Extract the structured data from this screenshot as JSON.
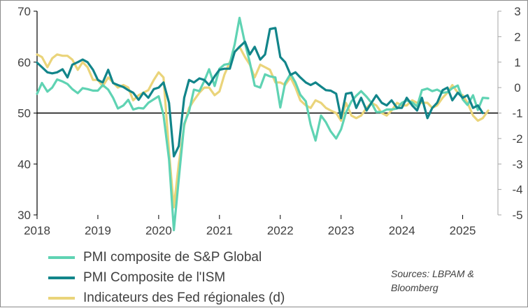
{
  "colors": {
    "sp_global": "#5fd3b3",
    "ism": "#12858a",
    "fed": "#ead47a",
    "axis": "#000000",
    "text": "#404040"
  },
  "legend": {
    "sp_global": "PMI composite de S&P Global",
    "ism": "PMI Composite de l'ISM",
    "fed": "Indicateurs des Fed régionales (d)"
  },
  "sources": {
    "line1": "Sources: LBPAM &",
    "line2": "Bloomberg"
  },
  "chart_data": {
    "type": "line",
    "x_tick_labels": [
      "2018",
      "2019",
      "2020",
      "2021",
      "2022",
      "2023",
      "2024",
      "2025"
    ],
    "xlim": [
      2018.0,
      2025.58
    ],
    "y_left": {
      "lim": [
        30,
        70
      ],
      "ticks": [
        30,
        40,
        50,
        60,
        70
      ],
      "reference_line": 50
    },
    "y_right": {
      "lim": [
        -5,
        3
      ],
      "ticks": [
        3,
        2,
        1,
        0,
        -1,
        -2,
        -3,
        -4,
        -5
      ]
    },
    "series": [
      {
        "name": "PMI composite de S&P Global",
        "axis": "left",
        "color_key": "sp_global",
        "points": [
          [
            2018.0,
            53.8
          ],
          [
            2018.08,
            55.9
          ],
          [
            2018.17,
            54.2
          ],
          [
            2018.25,
            55.0
          ],
          [
            2018.33,
            56.6
          ],
          [
            2018.42,
            56.2
          ],
          [
            2018.5,
            55.7
          ],
          [
            2018.58,
            54.7
          ],
          [
            2018.67,
            53.9
          ],
          [
            2018.75,
            54.9
          ],
          [
            2018.83,
            54.7
          ],
          [
            2018.92,
            54.4
          ],
          [
            2019.0,
            54.4
          ],
          [
            2019.08,
            55.5
          ],
          [
            2019.17,
            54.6
          ],
          [
            2019.25,
            53.0
          ],
          [
            2019.33,
            50.9
          ],
          [
            2019.42,
            51.5
          ],
          [
            2019.5,
            52.6
          ],
          [
            2019.58,
            50.7
          ],
          [
            2019.67,
            51.0
          ],
          [
            2019.75,
            50.9
          ],
          [
            2019.83,
            52.0
          ],
          [
            2019.92,
            52.7
          ],
          [
            2020.0,
            53.3
          ],
          [
            2020.08,
            49.6
          ],
          [
            2020.17,
            40.9
          ],
          [
            2020.25,
            27.0
          ],
          [
            2020.33,
            37.0
          ],
          [
            2020.42,
            47.9
          ],
          [
            2020.5,
            50.3
          ],
          [
            2020.58,
            54.6
          ],
          [
            2020.67,
            54.3
          ],
          [
            2020.75,
            56.3
          ],
          [
            2020.83,
            58.6
          ],
          [
            2020.92,
            55.3
          ],
          [
            2021.0,
            58.7
          ],
          [
            2021.08,
            59.5
          ],
          [
            2021.17,
            59.7
          ],
          [
            2021.25,
            63.5
          ],
          [
            2021.33,
            68.7
          ],
          [
            2021.42,
            63.7
          ],
          [
            2021.5,
            59.9
          ],
          [
            2021.58,
            55.4
          ],
          [
            2021.67,
            55.0
          ],
          [
            2021.75,
            57.6
          ],
          [
            2021.83,
            57.2
          ],
          [
            2021.92,
            57.0
          ],
          [
            2022.0,
            51.1
          ],
          [
            2022.08,
            55.9
          ],
          [
            2022.17,
            57.7
          ],
          [
            2022.25,
            56.0
          ],
          [
            2022.33,
            53.6
          ],
          [
            2022.42,
            52.3
          ],
          [
            2022.5,
            47.7
          ],
          [
            2022.58,
            44.6
          ],
          [
            2022.67,
            49.5
          ],
          [
            2022.75,
            48.2
          ],
          [
            2022.83,
            46.4
          ],
          [
            2022.92,
            45.0
          ],
          [
            2023.0,
            46.8
          ],
          [
            2023.08,
            50.1
          ],
          [
            2023.17,
            52.3
          ],
          [
            2023.25,
            53.4
          ],
          [
            2023.33,
            54.3
          ],
          [
            2023.42,
            53.2
          ],
          [
            2023.5,
            52.0
          ],
          [
            2023.58,
            50.2
          ],
          [
            2023.67,
            50.2
          ],
          [
            2023.75,
            50.7
          ],
          [
            2023.83,
            50.7
          ],
          [
            2023.92,
            50.9
          ],
          [
            2024.0,
            52.0
          ],
          [
            2024.08,
            52.5
          ],
          [
            2024.17,
            52.1
          ],
          [
            2024.25,
            51.3
          ],
          [
            2024.33,
            54.5
          ],
          [
            2024.42,
            54.8
          ],
          [
            2024.5,
            54.3
          ],
          [
            2024.58,
            54.6
          ],
          [
            2024.67,
            54.0
          ],
          [
            2024.75,
            54.1
          ],
          [
            2024.83,
            54.9
          ],
          [
            2024.92,
            55.4
          ],
          [
            2025.0,
            52.7
          ],
          [
            2025.08,
            51.6
          ],
          [
            2025.17,
            53.5
          ],
          [
            2025.25,
            50.6
          ],
          [
            2025.33,
            53.0
          ],
          [
            2025.42,
            52.9
          ]
        ]
      },
      {
        "name": "PMI Composite de l'ISM",
        "axis": "left",
        "color_key": "ism",
        "points": [
          [
            2018.0,
            59.9
          ],
          [
            2018.08,
            59.0
          ],
          [
            2018.17,
            58.0
          ],
          [
            2018.25,
            57.8
          ],
          [
            2018.33,
            58.0
          ],
          [
            2018.42,
            58.6
          ],
          [
            2018.5,
            57.0
          ],
          [
            2018.58,
            59.5
          ],
          [
            2018.67,
            60.0
          ],
          [
            2018.75,
            60.5
          ],
          [
            2018.83,
            60.0
          ],
          [
            2018.92,
            58.5
          ],
          [
            2019.0,
            56.5
          ],
          [
            2019.08,
            56.0
          ],
          [
            2019.17,
            58.5
          ],
          [
            2019.25,
            55.9
          ],
          [
            2019.33,
            55.5
          ],
          [
            2019.42,
            55.1
          ],
          [
            2019.5,
            54.5
          ],
          [
            2019.58,
            54.0
          ],
          [
            2019.67,
            52.6
          ],
          [
            2019.75,
            54.0
          ],
          [
            2019.83,
            53.0
          ],
          [
            2019.92,
            54.7
          ],
          [
            2020.0,
            55.0
          ],
          [
            2020.08,
            56.0
          ],
          [
            2020.17,
            52.0
          ],
          [
            2020.25,
            41.5
          ],
          [
            2020.33,
            43.5
          ],
          [
            2020.42,
            53.0
          ],
          [
            2020.5,
            56.5
          ],
          [
            2020.58,
            56.0
          ],
          [
            2020.67,
            56.8
          ],
          [
            2020.75,
            56.5
          ],
          [
            2020.83,
            55.5
          ],
          [
            2020.92,
            57.2
          ],
          [
            2021.0,
            58.5
          ],
          [
            2021.08,
            58.7
          ],
          [
            2021.17,
            58.7
          ],
          [
            2021.25,
            62.0
          ],
          [
            2021.33,
            63.0
          ],
          [
            2021.42,
            64.0
          ],
          [
            2021.5,
            61.5
          ],
          [
            2021.58,
            63.0
          ],
          [
            2021.67,
            60.5
          ],
          [
            2021.75,
            61.5
          ],
          [
            2021.83,
            66.5
          ],
          [
            2021.92,
            66.7
          ],
          [
            2022.0,
            61.0
          ],
          [
            2022.08,
            60.0
          ],
          [
            2022.17,
            57.5
          ],
          [
            2022.25,
            58.0
          ],
          [
            2022.33,
            57.0
          ],
          [
            2022.42,
            56.0
          ],
          [
            2022.5,
            55.5
          ],
          [
            2022.58,
            56.0
          ],
          [
            2022.67,
            55.2
          ],
          [
            2022.75,
            54.5
          ],
          [
            2022.83,
            54.4
          ],
          [
            2022.92,
            53.8
          ],
          [
            2023.0,
            49.0
          ],
          [
            2023.08,
            53.8
          ],
          [
            2023.17,
            54.0
          ],
          [
            2023.25,
            51.0
          ],
          [
            2023.33,
            53.0
          ],
          [
            2023.42,
            50.5
          ],
          [
            2023.5,
            52.0
          ],
          [
            2023.58,
            53.5
          ],
          [
            2023.67,
            52.0
          ],
          [
            2023.75,
            51.5
          ],
          [
            2023.83,
            52.5
          ],
          [
            2023.92,
            51.0
          ],
          [
            2024.0,
            51.0
          ],
          [
            2024.08,
            53.0
          ],
          [
            2024.17,
            51.5
          ],
          [
            2024.25,
            50.5
          ],
          [
            2024.33,
            53.0
          ],
          [
            2024.42,
            49.0
          ],
          [
            2024.5,
            51.0
          ],
          [
            2024.58,
            52.0
          ],
          [
            2024.67,
            54.5
          ],
          [
            2024.75,
            55.0
          ],
          [
            2024.83,
            52.5
          ],
          [
            2024.92,
            54.0
          ],
          [
            2025.0,
            53.0
          ],
          [
            2025.08,
            53.5
          ],
          [
            2025.17,
            51.0
          ],
          [
            2025.25,
            51.5
          ],
          [
            2025.33,
            50.0
          ]
        ]
      },
      {
        "name": "Indicateurs des Fed régionales (d)",
        "axis": "right",
        "color_key": "fed",
        "points": [
          [
            2018.0,
            1.3
          ],
          [
            2018.08,
            1.2
          ],
          [
            2018.17,
            0.8
          ],
          [
            2018.25,
            1.15
          ],
          [
            2018.33,
            1.3
          ],
          [
            2018.42,
            1.25
          ],
          [
            2018.5,
            1.25
          ],
          [
            2018.58,
            1.1
          ],
          [
            2018.67,
            0.7
          ],
          [
            2018.75,
            1.0
          ],
          [
            2018.83,
            0.8
          ],
          [
            2018.92,
            0.3
          ],
          [
            2019.0,
            0.3
          ],
          [
            2019.08,
            0.05
          ],
          [
            2019.17,
            0.4
          ],
          [
            2019.25,
            0.2
          ],
          [
            2019.33,
            0.0
          ],
          [
            2019.42,
            0.1
          ],
          [
            2019.5,
            0.0
          ],
          [
            2019.58,
            -0.5
          ],
          [
            2019.67,
            -0.3
          ],
          [
            2019.75,
            -0.2
          ],
          [
            2019.83,
            -0.1
          ],
          [
            2019.92,
            0.3
          ],
          [
            2020.0,
            0.6
          ],
          [
            2020.08,
            0.4
          ],
          [
            2020.17,
            -2.5
          ],
          [
            2020.25,
            -4.7
          ],
          [
            2020.33,
            -3.0
          ],
          [
            2020.42,
            -1.5
          ],
          [
            2020.5,
            -0.8
          ],
          [
            2020.58,
            -0.5
          ],
          [
            2020.67,
            -0.2
          ],
          [
            2020.75,
            0.0
          ],
          [
            2020.83,
            0.0
          ],
          [
            2020.92,
            -0.3
          ],
          [
            2021.0,
            -0.15
          ],
          [
            2021.08,
            0.5
          ],
          [
            2021.17,
            1.0
          ],
          [
            2021.25,
            1.4
          ],
          [
            2021.33,
            1.6
          ],
          [
            2021.42,
            1.2
          ],
          [
            2021.5,
            0.9
          ],
          [
            2021.58,
            0.4
          ],
          [
            2021.67,
            0.9
          ],
          [
            2021.75,
            0.8
          ],
          [
            2021.83,
            0.7
          ],
          [
            2021.92,
            0.2
          ],
          [
            2022.0,
            0.2
          ],
          [
            2022.08,
            0.1
          ],
          [
            2022.17,
            0.4
          ],
          [
            2022.25,
            0.0
          ],
          [
            2022.33,
            -0.5
          ],
          [
            2022.42,
            -0.7
          ],
          [
            2022.5,
            -0.8
          ],
          [
            2022.58,
            -0.5
          ],
          [
            2022.67,
            -0.6
          ],
          [
            2022.75,
            -0.8
          ],
          [
            2022.83,
            -0.9
          ],
          [
            2022.92,
            -1.0
          ],
          [
            2023.0,
            -1.3
          ],
          [
            2023.08,
            -0.6
          ],
          [
            2023.17,
            -1.1
          ],
          [
            2023.25,
            -1.2
          ],
          [
            2023.33,
            -1.1
          ],
          [
            2023.42,
            -0.8
          ],
          [
            2023.5,
            -0.6
          ],
          [
            2023.58,
            -0.7
          ],
          [
            2023.67,
            -1.0
          ],
          [
            2023.75,
            -1.1
          ],
          [
            2023.83,
            -0.9
          ],
          [
            2023.92,
            -0.6
          ],
          [
            2024.0,
            -0.7
          ],
          [
            2024.08,
            -0.7
          ],
          [
            2024.17,
            -0.5
          ],
          [
            2024.25,
            -0.6
          ],
          [
            2024.33,
            -0.6
          ],
          [
            2024.42,
            -0.6
          ],
          [
            2024.5,
            -0.8
          ],
          [
            2024.58,
            -0.7
          ],
          [
            2024.67,
            -0.4
          ],
          [
            2024.75,
            -0.2
          ],
          [
            2024.83,
            0.1
          ],
          [
            2024.92,
            -0.2
          ],
          [
            2025.0,
            -0.3
          ],
          [
            2025.08,
            -0.6
          ],
          [
            2025.17,
            -1.1
          ],
          [
            2025.25,
            -1.3
          ],
          [
            2025.33,
            -1.2
          ],
          [
            2025.42,
            -0.9
          ]
        ]
      }
    ]
  }
}
